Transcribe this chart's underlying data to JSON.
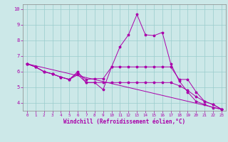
{
  "xlabel": "Windchill (Refroidissement éolien,°C)",
  "xlim": [
    -0.5,
    23.5
  ],
  "ylim": [
    3.5,
    10.3
  ],
  "yticks": [
    4,
    5,
    6,
    7,
    8,
    9,
    10
  ],
  "xticks": [
    0,
    1,
    2,
    3,
    4,
    5,
    6,
    7,
    8,
    9,
    10,
    11,
    12,
    13,
    14,
    15,
    16,
    17,
    18,
    19,
    20,
    21,
    22,
    23
  ],
  "bg_color": "#cce8e8",
  "line_color": "#aa00aa",
  "grid_color": "#99cccc",
  "lines": [
    {
      "x": [
        0,
        1,
        2,
        3,
        4,
        5,
        6,
        7,
        8,
        9,
        10,
        11,
        12,
        13,
        14,
        15,
        16,
        17,
        18,
        19,
        20,
        21,
        22,
        23
      ],
      "y": [
        6.5,
        6.3,
        6.0,
        5.85,
        5.65,
        5.5,
        6.0,
        5.3,
        5.3,
        4.85,
        6.3,
        7.6,
        8.35,
        9.65,
        8.35,
        8.3,
        8.5,
        6.5,
        5.4,
        4.7,
        4.1,
        3.9,
        3.7,
        3.6
      ]
    },
    {
      "x": [
        0,
        1,
        2,
        3,
        4,
        5,
        6,
        7,
        8,
        9,
        10,
        11,
        12,
        13,
        14,
        15,
        16,
        17,
        18,
        19,
        20,
        21,
        22,
        23
      ],
      "y": [
        6.5,
        6.3,
        6.0,
        5.85,
        5.65,
        5.5,
        5.9,
        5.5,
        5.55,
        5.55,
        6.3,
        6.3,
        6.3,
        6.3,
        6.3,
        6.3,
        6.3,
        6.3,
        5.5,
        5.5,
        4.7,
        4.1,
        3.9,
        3.6
      ]
    },
    {
      "x": [
        0,
        1,
        2,
        3,
        4,
        5,
        6,
        7,
        8,
        9,
        10,
        11,
        12,
        13,
        14,
        15,
        16,
        17,
        18,
        19,
        20,
        21,
        22,
        23
      ],
      "y": [
        6.5,
        6.3,
        6.0,
        5.85,
        5.65,
        5.5,
        5.8,
        5.3,
        5.3,
        5.3,
        5.3,
        5.3,
        5.3,
        5.3,
        5.3,
        5.3,
        5.3,
        5.3,
        5.1,
        4.8,
        4.4,
        4.1,
        3.9,
        3.6
      ]
    },
    {
      "x": [
        0,
        23
      ],
      "y": [
        6.5,
        3.6
      ]
    }
  ]
}
